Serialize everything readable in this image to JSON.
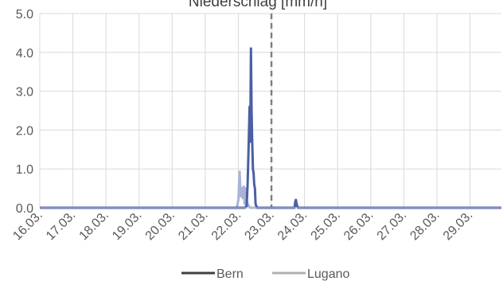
{
  "chart_data": {
    "type": "line",
    "title": "Niederschlag [mm/h]",
    "xlabel": "",
    "ylabel": "",
    "ylim": [
      0,
      5
    ],
    "yticks": [
      "0.0",
      "1.0",
      "2.0",
      "3.0",
      "4.0",
      "5.0"
    ],
    "categories": [
      "16.03.",
      "17.03.",
      "18.03.",
      "19.03.",
      "20.03.",
      "21.03.",
      "22.03.",
      "23.03.",
      "24.03.",
      "25.03.",
      "26.03.",
      "27.03.",
      "28.03.",
      "29.03."
    ],
    "xlim": [
      0,
      13.95
    ],
    "grid": true,
    "legend": "bottom",
    "reference_line": {
      "x": 7.0,
      "style": "dashed",
      "color": "#7f7f7f"
    },
    "series": [
      {
        "name": "Lugano",
        "color": "#a9b4d6",
        "x": [
          0,
          5.95,
          6.0,
          6.04,
          6.07,
          6.1,
          6.13,
          6.16,
          6.19,
          6.22,
          6.25,
          6.28,
          6.31,
          6.36,
          7.7,
          7.72,
          7.74,
          7.76,
          7.8,
          13.95
        ],
        "values": [
          0,
          0,
          0.2,
          0.93,
          0.3,
          0.5,
          0.25,
          0.55,
          0.1,
          0.5,
          0.2,
          0.1,
          0.05,
          0,
          0,
          0.15,
          0.2,
          0.1,
          0,
          0
        ]
      },
      {
        "name": "Bern",
        "color": "#4a5fa5",
        "x": [
          0,
          6.2,
          6.25,
          6.28,
          6.31,
          6.34,
          6.36,
          6.38,
          6.4,
          6.42,
          6.44,
          6.46,
          6.48,
          6.5,
          6.52,
          6.54,
          6.57,
          6.62,
          7.7,
          7.72,
          7.74,
          7.76,
          7.8,
          13.95
        ],
        "values": [
          0,
          0,
          0.05,
          0.6,
          1.6,
          2.6,
          1.7,
          4.1,
          2.5,
          1.7,
          1.0,
          0.9,
          0.6,
          0.5,
          0.1,
          0.05,
          0,
          0,
          0,
          0.15,
          0.2,
          0.1,
          0,
          0
        ]
      }
    ],
    "legend_entries": [
      {
        "label": "Bern",
        "color": "#404040"
      },
      {
        "label": "Lugano",
        "color": "#b0b0b0"
      }
    ]
  }
}
